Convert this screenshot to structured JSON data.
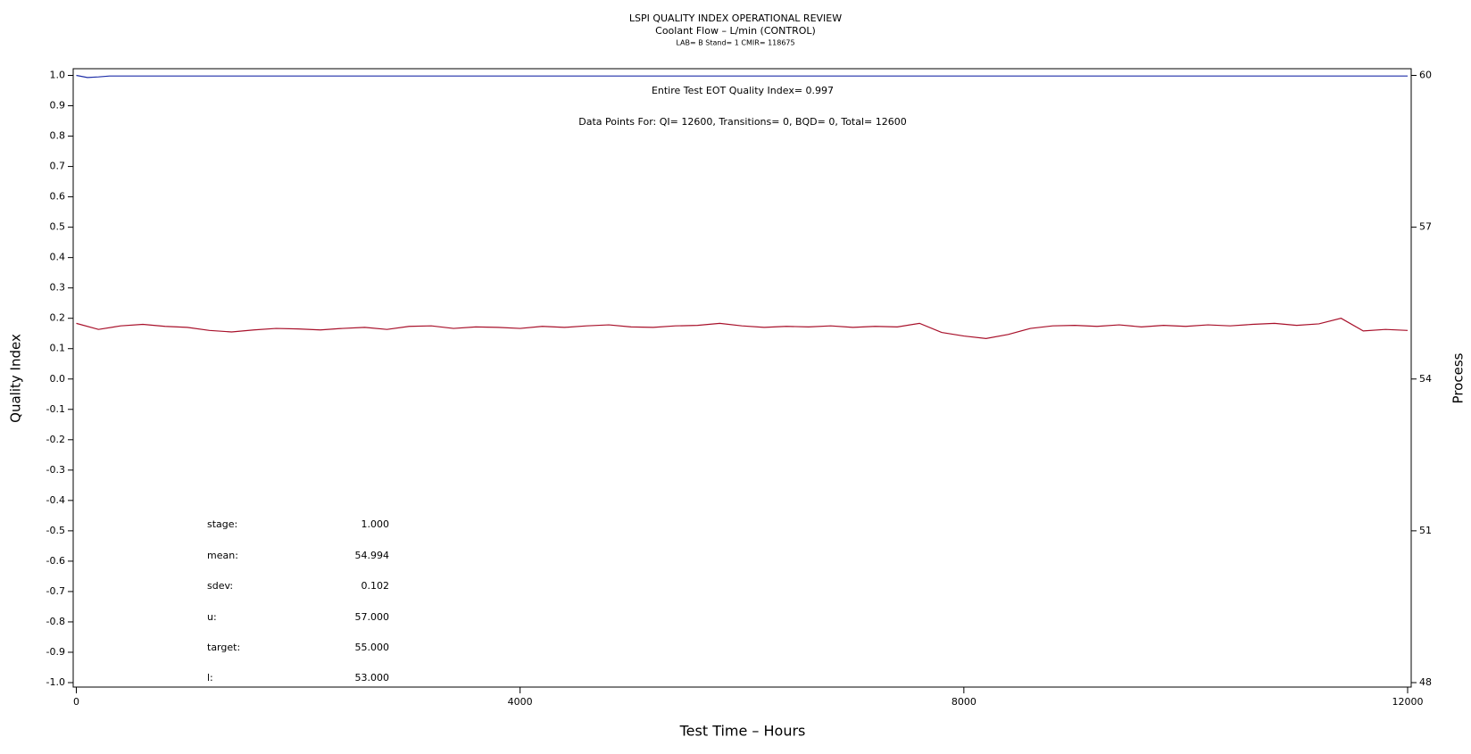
{
  "chart_data": {
    "type": "line",
    "title": "LSPI QUALITY INDEX OPERATIONAL REVIEW",
    "subtitle": "Coolant Flow – L/min (CONTROL)",
    "caption": "LAB= B Stand= 1 CMIR= 118675",
    "annotations": [
      "Entire Test EOT Quality Index=   0.997",
      "Data Points For: QI= 12600, Transitions=     0, BQD=     0, Total= 12600"
    ],
    "stats": [
      {
        "label": "stage:",
        "value": "1.000"
      },
      {
        "label": "mean:",
        "value": "54.994"
      },
      {
        "label": "sdev:",
        "value": "0.102"
      },
      {
        "label": "u:",
        "value": "57.000"
      },
      {
        "label": "target:",
        "value": "55.000"
      },
      {
        "label": "l:",
        "value": "53.000"
      }
    ],
    "x_label": "Test Time – Hours",
    "y_label": "Quality Index",
    "y2_label": "Process",
    "xlim": [
      0,
      12000
    ],
    "xticks": [
      0,
      4000,
      8000,
      12000
    ],
    "ylim": [
      -1,
      1
    ],
    "yticks": [
      {
        "value": -1,
        "label": "-1.0"
      },
      -0.9,
      -0.8,
      -0.7,
      -0.6,
      -0.5,
      -0.4,
      -0.3,
      -0.2,
      -0.1,
      {
        "value": 0,
        "label": "0.0"
      },
      0.1,
      0.2,
      0.3,
      0.4,
      0.5,
      0.6,
      0.7,
      0.8,
      0.9,
      {
        "value": 1,
        "label": "1.0"
      }
    ],
    "y2lim": [
      48,
      60
    ],
    "y2ticks": [
      48,
      51,
      54,
      57,
      60
    ],
    "series": [
      {
        "color": "#1f2fa8",
        "axis": "y",
        "x": [
          0,
          100,
          200,
          300,
          12000
        ],
        "values": [
          1.0,
          0.993,
          0.995,
          0.998,
          0.998
        ]
      },
      {
        "color": "#a8102a",
        "axis": "y2",
        "x": [
          0,
          200,
          400,
          600,
          800,
          1000,
          1200,
          1400,
          1600,
          1800,
          2000,
          2200,
          2400,
          2600,
          2800,
          3000,
          3200,
          3400,
          3600,
          3800,
          4000,
          4200,
          4400,
          4600,
          4800,
          5000,
          5200,
          5400,
          5600,
          5800,
          6000,
          6200,
          6400,
          6600,
          6800,
          7000,
          7200,
          7400,
          7600,
          7800,
          8000,
          8200,
          8400,
          8600,
          8800,
          9000,
          9200,
          9400,
          9600,
          9800,
          10000,
          10200,
          10400,
          10600,
          10800,
          11000,
          11200,
          11400,
          11600,
          11800,
          12000
        ],
        "values": [
          55.1,
          54.98,
          55.05,
          55.08,
          55.04,
          55.02,
          54.96,
          54.93,
          54.97,
          55.0,
          54.99,
          54.97,
          55.0,
          55.02,
          54.98,
          55.04,
          55.05,
          55.0,
          55.03,
          55.02,
          55.0,
          55.04,
          55.02,
          55.05,
          55.07,
          55.03,
          55.02,
          55.05,
          55.06,
          55.1,
          55.05,
          55.02,
          55.04,
          55.03,
          55.05,
          55.02,
          55.04,
          55.03,
          55.1,
          54.92,
          54.85,
          54.8,
          54.88,
          55.0,
          55.05,
          55.06,
          55.04,
          55.07,
          55.03,
          55.06,
          55.04,
          55.07,
          55.05,
          55.08,
          55.1,
          55.06,
          55.09,
          55.2,
          54.95,
          54.98,
          54.96
        ]
      }
    ]
  }
}
